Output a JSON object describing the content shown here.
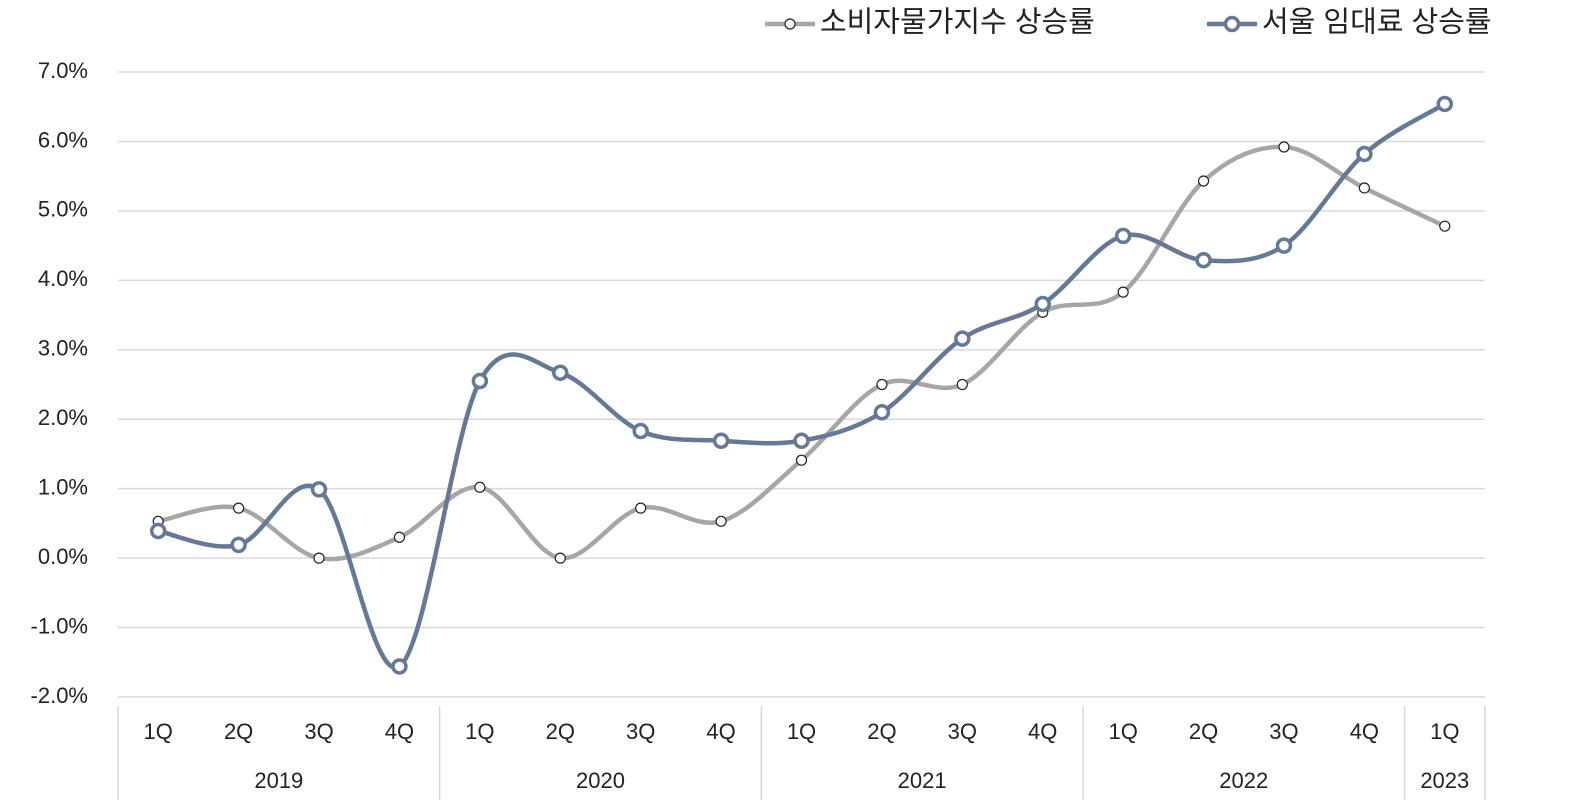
{
  "chart_data": {
    "type": "line",
    "categories": [
      "1Q",
      "2Q",
      "3Q",
      "4Q",
      "1Q",
      "2Q",
      "3Q",
      "4Q",
      "1Q",
      "2Q",
      "3Q",
      "4Q",
      "1Q",
      "2Q",
      "3Q",
      "4Q",
      "1Q"
    ],
    "years": [
      "2019",
      "2020",
      "2021",
      "2022",
      "2023"
    ],
    "year_spans": [
      4,
      4,
      4,
      4,
      1
    ],
    "series": [
      {
        "name": "소비자물가지수 상승률",
        "color": "#a6a6a6",
        "values": [
          0.53,
          0.72,
          0.0,
          0.3,
          1.02,
          0.0,
          0.72,
          0.53,
          1.41,
          2.5,
          2.5,
          3.54,
          3.83,
          5.43,
          5.92,
          5.33,
          4.78
        ]
      },
      {
        "name": "서울 임대료 상승률",
        "color": "#657896",
        "values": [
          0.39,
          0.19,
          0.99,
          -1.56,
          2.55,
          2.67,
          1.83,
          1.69,
          1.69,
          2.1,
          3.16,
          3.66,
          4.64,
          4.29,
          4.5,
          5.82,
          6.54
        ]
      }
    ],
    "ylim": [
      -2,
      7
    ],
    "yticks": [
      {
        "value": -2,
        "label": "-2.0%"
      },
      {
        "value": -1,
        "label": "-1.0%"
      },
      {
        "value": 0,
        "label": "0.0%"
      },
      {
        "value": 1,
        "label": "1.0%"
      },
      {
        "value": 2,
        "label": "2.0%"
      },
      {
        "value": 3,
        "label": "3.0%"
      },
      {
        "value": 4,
        "label": "4.0%"
      },
      {
        "value": 5,
        "label": "5.0%"
      },
      {
        "value": 6,
        "label": "6.0%"
      },
      {
        "value": 7,
        "label": "7.0%"
      }
    ],
    "grid": true,
    "smooth": true,
    "legend": "top-right"
  }
}
